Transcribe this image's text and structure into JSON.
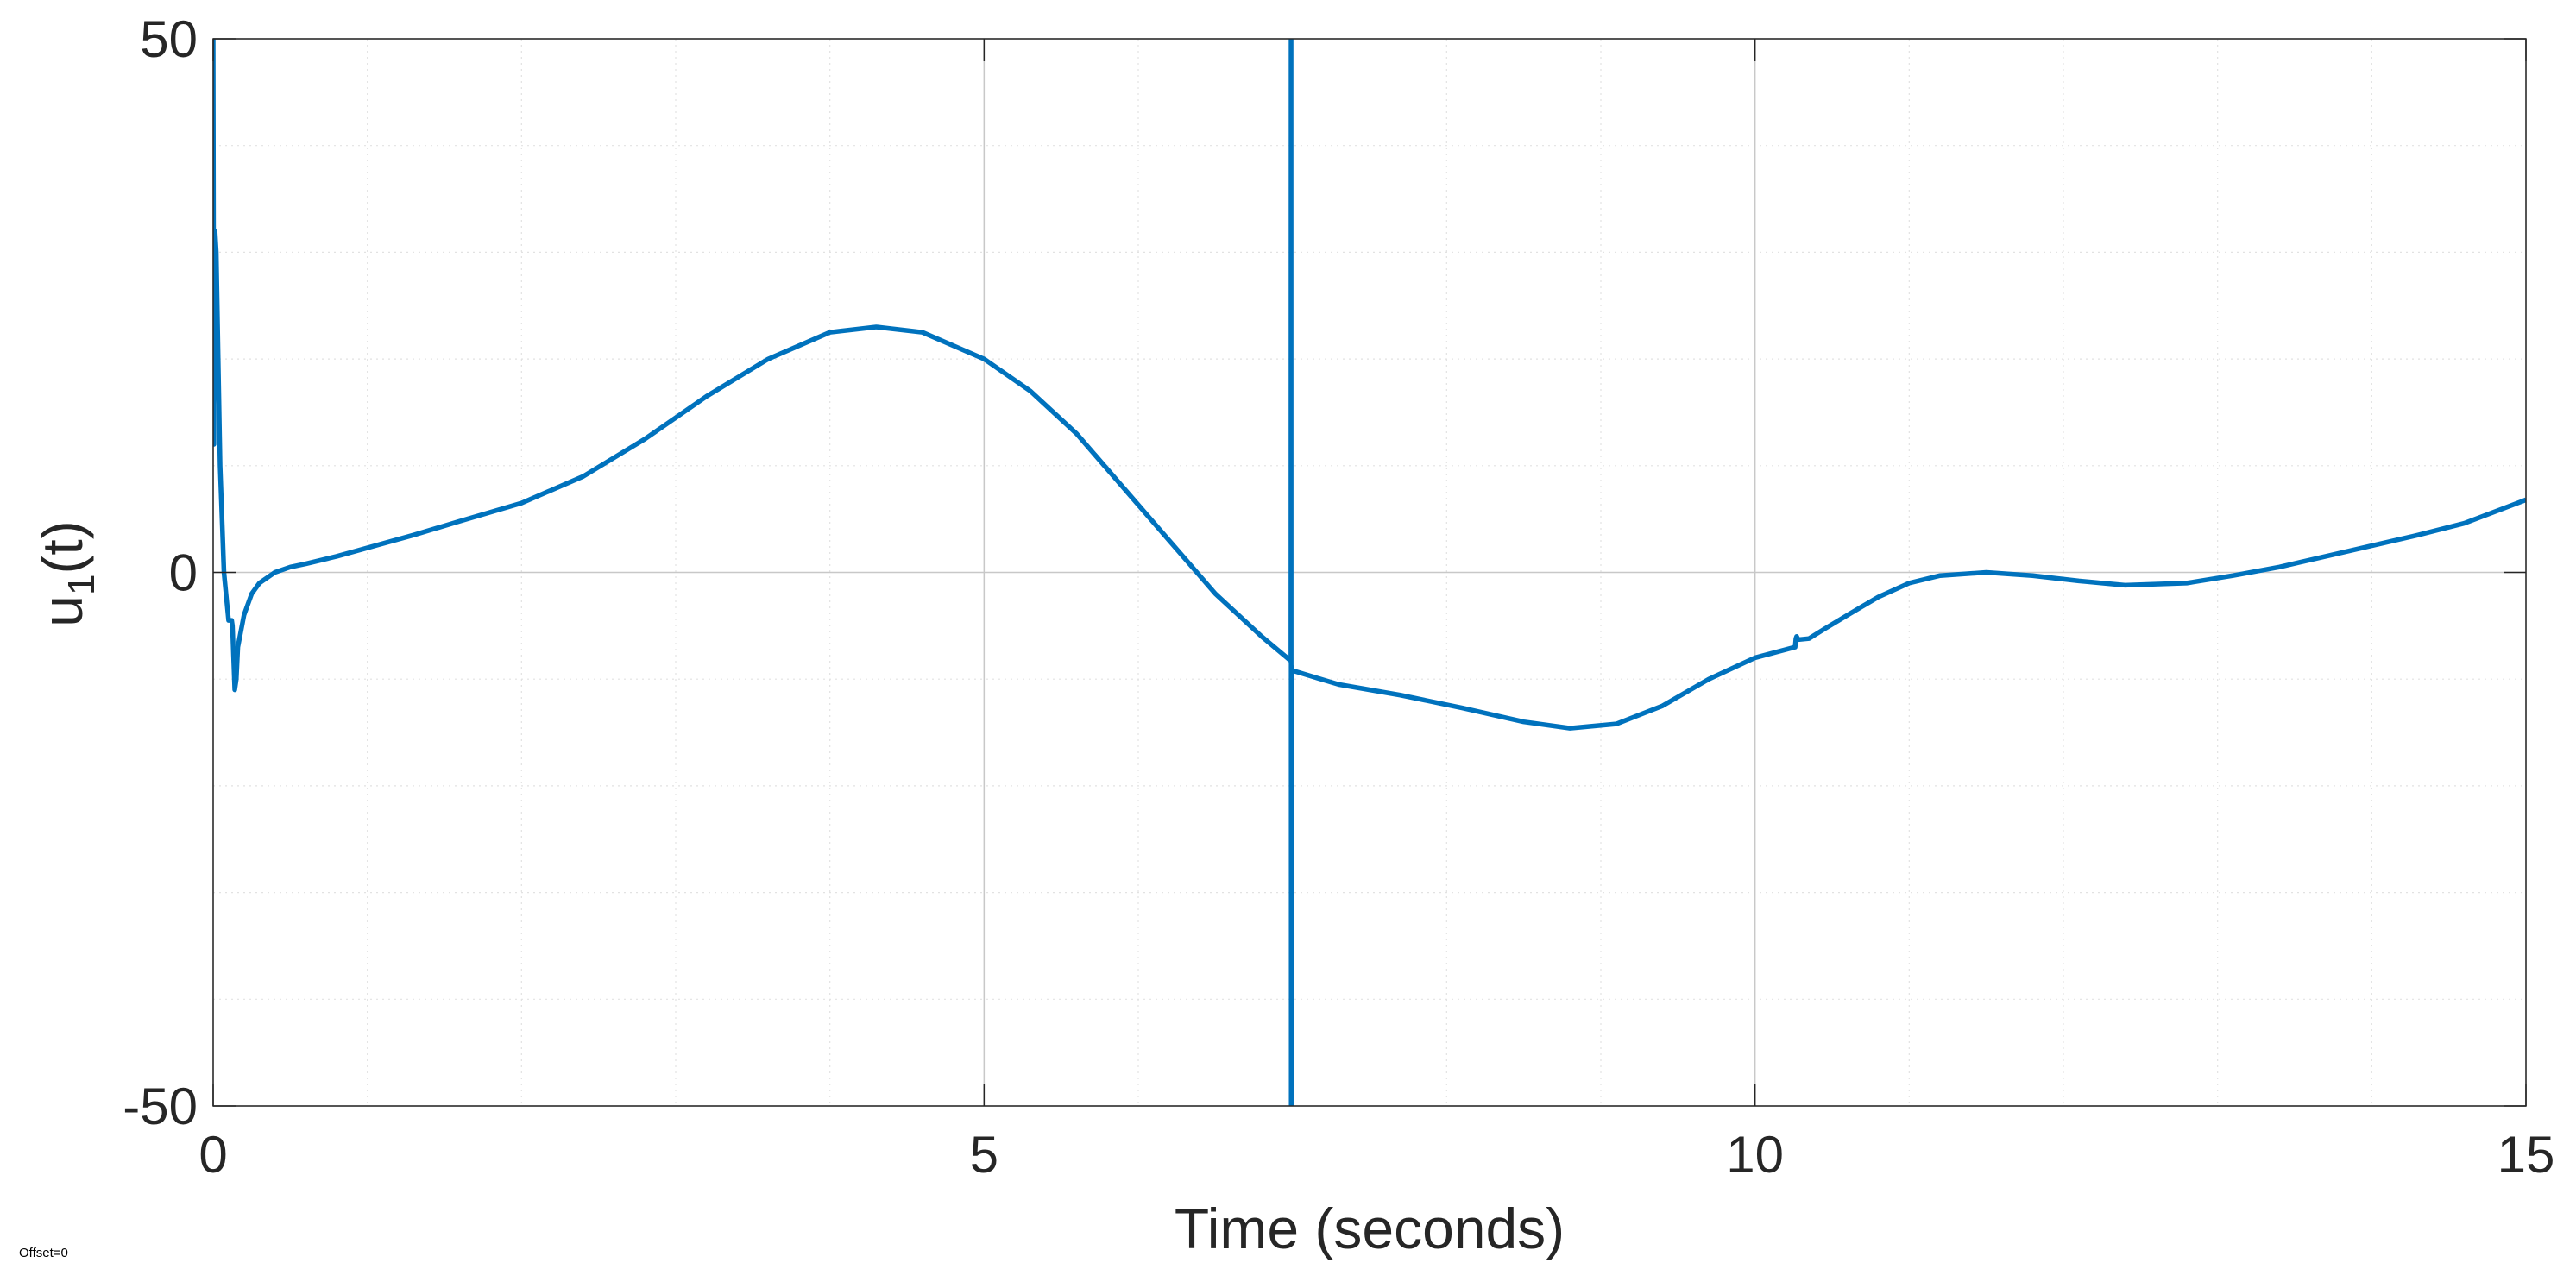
{
  "chart_data": {
    "type": "line",
    "title": "",
    "xlabel": "Time (seconds)",
    "ylabel_main": "u",
    "ylabel_sub": "1",
    "ylabel_tail": "(t)",
    "xlim": [
      0,
      15
    ],
    "ylim": [
      -50,
      50
    ],
    "x_ticks": [
      0,
      5,
      10,
      15
    ],
    "x_tick_labels": [
      "0",
      "5",
      "10",
      "15"
    ],
    "y_ticks": [
      -50,
      0,
      50
    ],
    "y_tick_labels": [
      "-50",
      "0",
      "50"
    ],
    "x_minor_step": 1,
    "y_minor_step": 10,
    "grid": true,
    "minor_grid": true,
    "line_color": "#0072BD",
    "series": [
      {
        "x": [
          0,
          0.005,
          0.012,
          0.02,
          0.03,
          0.045,
          0.07,
          0.1,
          0.12,
          0.125,
          0.14,
          0.15,
          0.16,
          0.2,
          0.25,
          0.3,
          0.4,
          0.5,
          0.6,
          0.8,
          1.0,
          1.3,
          1.6,
          2.0,
          2.4,
          2.8,
          3.2,
          3.6,
          4.0,
          4.3,
          4.6,
          5.0,
          5.3,
          5.6,
          5.9,
          6.2,
          6.5,
          6.8,
          6.99,
          6.991,
          6.992,
          6.993,
          7.0,
          7.3,
          7.7,
          8.1,
          8.5,
          8.8,
          9.1,
          9.4,
          9.7,
          10.0,
          10.26,
          10.265,
          10.27,
          10.28,
          10.35,
          10.45,
          10.6,
          10.8,
          11.0,
          11.2,
          11.5,
          11.8,
          12.1,
          12.4,
          12.8,
          13.1,
          13.4,
          13.7,
          14.0,
          14.3,
          14.6,
          15.0
        ],
        "y": [
          50,
          12,
          32,
          30,
          22,
          10,
          0,
          -4.5,
          -4.5,
          -5,
          -11,
          -10,
          -7,
          -4,
          -2,
          -1,
          0,
          0.5,
          0.8,
          1.5,
          2.3,
          3.5,
          4.8,
          6.5,
          9,
          12.5,
          16.5,
          20,
          22.5,
          23,
          22.5,
          20,
          17,
          13,
          8,
          3,
          -2,
          -6,
          -8.3,
          50,
          -50,
          -8.8,
          -9.2,
          -10.5,
          -11.5,
          -12.7,
          -14,
          -14.6,
          -14.2,
          -12.5,
          -10,
          -8,
          -7,
          -6.2,
          -6,
          -6.3,
          -6.2,
          -5.3,
          -4,
          -2.3,
          -1,
          -0.3,
          0,
          -0.3,
          -0.8,
          -1.2,
          -1,
          -0.3,
          0.5,
          1.5,
          2.5,
          3.5,
          4.6,
          6.8
        ]
      }
    ]
  },
  "offset_label": "Offset=0"
}
